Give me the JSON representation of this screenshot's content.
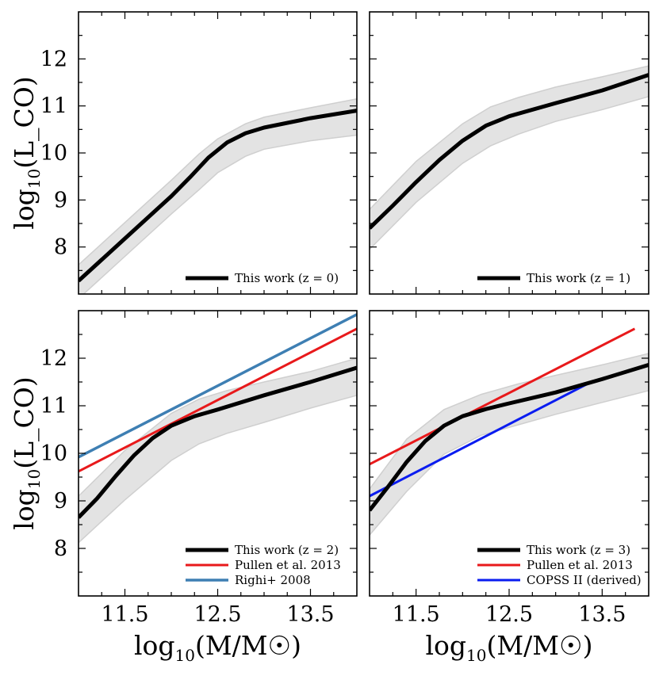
{
  "chart_data": [
    {
      "type": "line",
      "panel": "top-left",
      "xlabel": "",
      "ylabel": "log10(L_CO)",
      "xlim": [
        11.0,
        14.0
      ],
      "ylim": [
        7.0,
        13.0
      ],
      "xticks": [
        "11.5",
        "12.5",
        "13.5"
      ],
      "yticks": [
        "8",
        "9",
        "10",
        "11",
        "12"
      ],
      "show_xtick_labels": false,
      "show_ytick_labels": true,
      "band": {
        "x": [
          11.0,
          11.5,
          12.0,
          12.3,
          12.5,
          12.8,
          13.0,
          13.5,
          14.0
        ],
        "upper": [
          7.62,
          8.52,
          9.42,
          9.98,
          10.3,
          10.62,
          10.76,
          10.96,
          11.15
        ],
        "lower": [
          6.9,
          7.8,
          8.7,
          9.22,
          9.58,
          9.93,
          10.08,
          10.26,
          10.38
        ]
      },
      "series": [
        {
          "name": "This work (z = 0)",
          "color": "#000000",
          "width": 5,
          "x": [
            11.0,
            11.5,
            12.0,
            12.2,
            12.4,
            12.6,
            12.8,
            13.0,
            13.5,
            14.0
          ],
          "y": [
            7.28,
            8.18,
            9.08,
            9.48,
            9.9,
            10.22,
            10.42,
            10.54,
            10.74,
            10.9
          ]
        }
      ],
      "legend": {
        "position": "bottom-right",
        "entries": [
          {
            "label": "This work (z = 0)",
            "color": "#000000",
            "width": 5
          }
        ]
      }
    },
    {
      "type": "line",
      "panel": "top-right",
      "xlabel": "",
      "ylabel": "",
      "xlim": [
        11.0,
        14.0
      ],
      "ylim": [
        7.0,
        13.0
      ],
      "xticks": [
        "11.5",
        "12.5",
        "13.5"
      ],
      "yticks": [
        "8",
        "9",
        "10",
        "11",
        "12"
      ],
      "show_xtick_labels": false,
      "show_ytick_labels": false,
      "band": {
        "x": [
          11.0,
          11.5,
          12.0,
          12.3,
          12.6,
          13.0,
          13.5,
          14.0
        ],
        "upper": [
          8.8,
          9.82,
          10.62,
          10.98,
          11.18,
          11.4,
          11.62,
          11.85
        ],
        "lower": [
          7.95,
          8.95,
          9.78,
          10.15,
          10.4,
          10.67,
          10.92,
          11.2
        ]
      },
      "series": [
        {
          "name": "This work (z = 1)",
          "color": "#000000",
          "width": 5,
          "x": [
            11.0,
            11.25,
            11.5,
            11.75,
            12.0,
            12.25,
            12.5,
            13.0,
            13.5,
            14.0
          ],
          "y": [
            8.4,
            8.88,
            9.38,
            9.85,
            10.26,
            10.58,
            10.78,
            11.06,
            11.33,
            11.66
          ]
        }
      ],
      "legend": {
        "position": "bottom-right",
        "entries": [
          {
            "label": "This work (z = 1)",
            "color": "#000000",
            "width": 5
          }
        ]
      }
    },
    {
      "type": "line",
      "panel": "bottom-left",
      "xlabel": "log10(M/M☉)",
      "ylabel": "log10(L_CO)",
      "xlim": [
        11.0,
        14.0
      ],
      "ylim": [
        7.0,
        13.0
      ],
      "xticks": [
        "11.5",
        "12.5",
        "13.5"
      ],
      "yticks": [
        "8",
        "9",
        "10",
        "11",
        "12"
      ],
      "show_xtick_labels": true,
      "show_ytick_labels": true,
      "band": {
        "x": [
          11.0,
          11.5,
          12.0,
          12.3,
          12.6,
          13.0,
          13.5,
          14.0
        ],
        "upper": [
          9.1,
          10.06,
          10.84,
          11.14,
          11.32,
          11.5,
          11.72,
          12.0
        ],
        "lower": [
          8.12,
          9.02,
          9.85,
          10.2,
          10.42,
          10.65,
          10.95,
          11.22
        ]
      },
      "series": [
        {
          "name": "This work (z = 2)",
          "color": "#000000",
          "width": 5,
          "x": [
            11.0,
            11.2,
            11.4,
            11.6,
            11.8,
            12.0,
            12.25,
            12.5,
            13.0,
            13.5,
            14.0
          ],
          "y": [
            8.65,
            9.05,
            9.52,
            9.96,
            10.32,
            10.58,
            10.78,
            10.92,
            11.22,
            11.5,
            11.8
          ]
        },
        {
          "name": "Pullen et al. 2013",
          "color": "#e8191b",
          "width": 3,
          "x": [
            11.0,
            14.0
          ],
          "y": [
            9.62,
            12.62
          ]
        },
        {
          "name": "Righi+ 2008",
          "color": "#3e7fb3",
          "width": 3.5,
          "x": [
            11.0,
            14.0
          ],
          "y": [
            9.92,
            12.92
          ]
        }
      ],
      "legend": {
        "position": "bottom-right",
        "entries": [
          {
            "label": "This work (z = 2)",
            "color": "#000000",
            "width": 5
          },
          {
            "label": "Pullen et al. 2013",
            "color": "#e8191b",
            "width": 3
          },
          {
            "label": "Righi+ 2008",
            "color": "#3e7fb3",
            "width": 3.5
          }
        ]
      }
    },
    {
      "type": "line",
      "panel": "bottom-right",
      "xlabel": "log10(M/M☉)",
      "ylabel": "",
      "xlim": [
        11.0,
        14.0
      ],
      "ylim": [
        7.0,
        13.0
      ],
      "xticks": [
        "11.5",
        "12.5",
        "13.5"
      ],
      "yticks": [
        "8",
        "9",
        "10",
        "11",
        "12"
      ],
      "show_xtick_labels": true,
      "show_ytick_labels": false,
      "band": {
        "x": [
          11.0,
          11.4,
          11.8,
          12.2,
          12.6,
          13.0,
          13.5,
          14.0
        ],
        "upper": [
          9.25,
          10.3,
          10.92,
          11.24,
          11.46,
          11.64,
          11.86,
          12.1
        ],
        "lower": [
          8.28,
          9.2,
          9.98,
          10.38,
          10.6,
          10.82,
          11.07,
          11.32
        ]
      },
      "series": [
        {
          "name": "This work (z = 3)",
          "color": "#000000",
          "width": 5,
          "x": [
            11.0,
            11.2,
            11.4,
            11.6,
            11.8,
            12.0,
            12.25,
            12.5,
            13.0,
            13.5,
            14.0
          ],
          "y": [
            8.8,
            9.3,
            9.82,
            10.26,
            10.58,
            10.78,
            10.93,
            11.05,
            11.28,
            11.56,
            11.86
          ]
        },
        {
          "name": "Pullen et al. 2013",
          "color": "#e8191b",
          "width": 3,
          "x": [
            11.0,
            13.85
          ],
          "y": [
            9.77,
            12.62
          ]
        },
        {
          "name": "COPSS II (derived)",
          "color": "#0a1cf0",
          "width": 3,
          "x": [
            11.0,
            13.38
          ],
          "y": [
            9.1,
            11.5
          ]
        }
      ],
      "legend": {
        "position": "bottom-right",
        "entries": [
          {
            "label": "This work (z = 3)",
            "color": "#000000",
            "width": 5
          },
          {
            "label": "Pullen et al. 2013",
            "color": "#e8191b",
            "width": 3
          },
          {
            "label": "COPSS II (derived)",
            "color": "#0a1cf0",
            "width": 3
          }
        ]
      }
    }
  ]
}
